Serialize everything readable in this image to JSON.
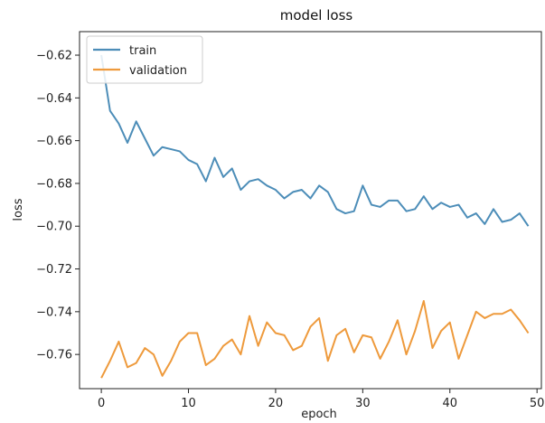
{
  "chart_data": {
    "type": "line",
    "title": "model loss",
    "xlabel": "epoch",
    "ylabel": "loss",
    "xlim": [
      -2.5,
      50.5
    ],
    "ylim": [
      -0.776,
      -0.609
    ],
    "x_ticks": [
      0,
      10,
      20,
      30,
      40,
      50
    ],
    "x_tick_labels": [
      "0",
      "10",
      "20",
      "30",
      "40",
      "50"
    ],
    "y_ticks": [
      -0.62,
      -0.64,
      -0.66,
      -0.68,
      -0.7,
      -0.72,
      -0.74,
      -0.76
    ],
    "y_tick_labels": [
      "−0.62",
      "−0.64",
      "−0.66",
      "−0.68",
      "−0.70",
      "−0.72",
      "−0.74",
      "−0.76"
    ],
    "grid": false,
    "legend_position": "top-left",
    "x": [
      0,
      1,
      2,
      3,
      4,
      5,
      6,
      7,
      8,
      9,
      10,
      11,
      12,
      13,
      14,
      15,
      16,
      17,
      18,
      19,
      20,
      21,
      22,
      23,
      24,
      25,
      26,
      27,
      28,
      29,
      30,
      31,
      32,
      33,
      34,
      35,
      36,
      37,
      38,
      39,
      40,
      41,
      42,
      43,
      44,
      45,
      46,
      47,
      48,
      49
    ],
    "series": [
      {
        "name": "train",
        "color": "#4c8db8",
        "values": [
          -0.62,
          -0.646,
          -0.652,
          -0.661,
          -0.651,
          -0.659,
          -0.667,
          -0.663,
          -0.664,
          -0.665,
          -0.669,
          -0.671,
          -0.679,
          -0.668,
          -0.677,
          -0.673,
          -0.683,
          -0.679,
          -0.678,
          -0.681,
          -0.683,
          -0.687,
          -0.684,
          -0.683,
          -0.687,
          -0.681,
          -0.684,
          -0.692,
          -0.694,
          -0.693,
          -0.681,
          -0.69,
          -0.691,
          -0.688,
          -0.688,
          -0.693,
          -0.692,
          -0.686,
          -0.692,
          -0.689,
          -0.691,
          -0.69,
          -0.696,
          -0.694,
          -0.699,
          -0.692,
          -0.698,
          -0.697,
          -0.694,
          -0.7
        ]
      },
      {
        "name": "validation",
        "color": "#ee9a3c",
        "values": [
          -0.771,
          -0.763,
          -0.754,
          -0.766,
          -0.764,
          -0.757,
          -0.76,
          -0.77,
          -0.763,
          -0.754,
          -0.75,
          -0.75,
          -0.765,
          -0.762,
          -0.756,
          -0.753,
          -0.76,
          -0.742,
          -0.756,
          -0.745,
          -0.75,
          -0.751,
          -0.758,
          -0.756,
          -0.747,
          -0.743,
          -0.763,
          -0.751,
          -0.748,
          -0.759,
          -0.751,
          -0.752,
          -0.762,
          -0.754,
          -0.744,
          -0.76,
          -0.749,
          -0.735,
          -0.757,
          -0.749,
          -0.745,
          -0.762,
          -0.751,
          -0.74,
          -0.743,
          -0.741,
          -0.741,
          -0.739,
          -0.744,
          -0.75
        ]
      }
    ]
  }
}
